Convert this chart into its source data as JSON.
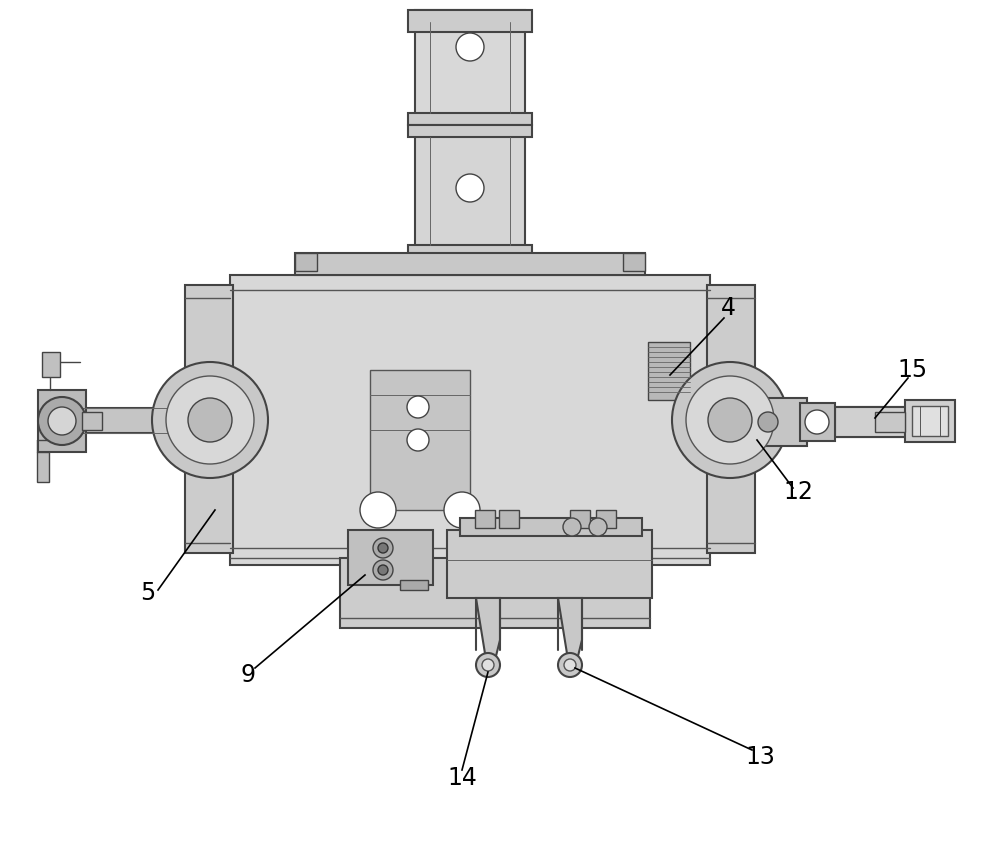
{
  "bg_color": "#ffffff",
  "ec": "#444444",
  "fc_light": "#e0e0e0",
  "fc_mid": "#d0d0d0",
  "fc_dark": "#b8b8b8",
  "figsize": [
    10.0,
    8.5
  ],
  "dpi": 100
}
